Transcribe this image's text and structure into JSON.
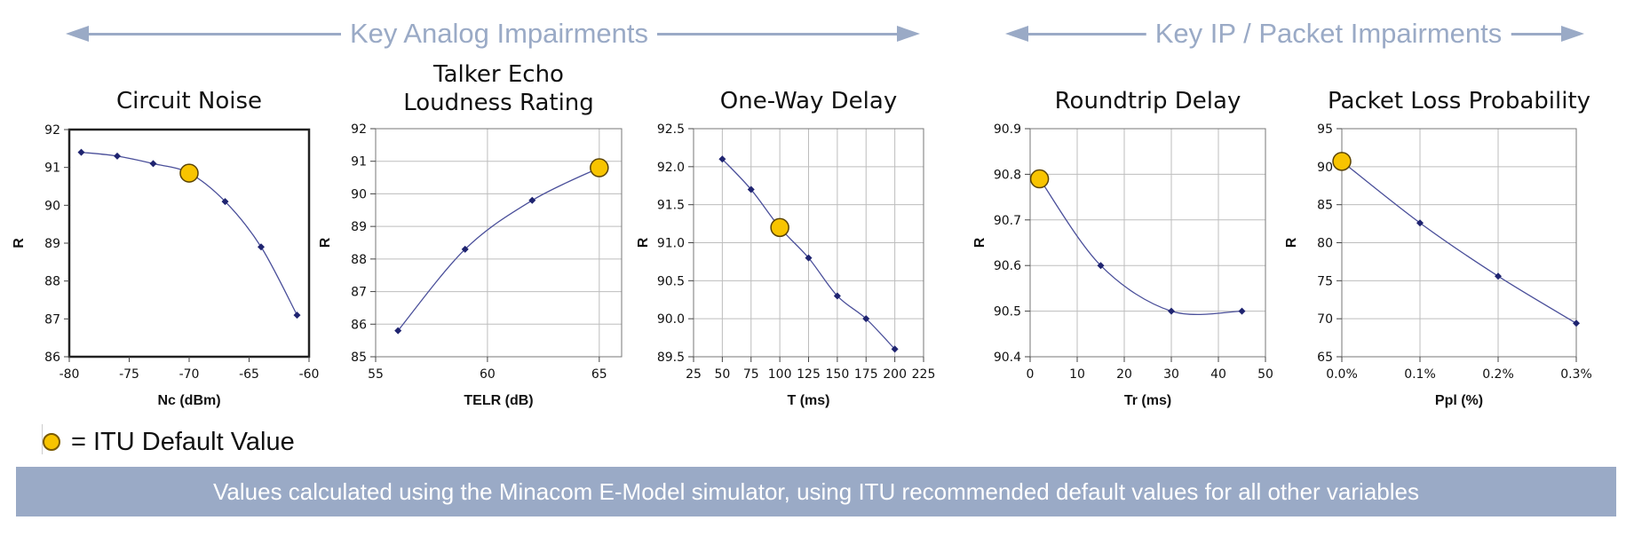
{
  "headers": {
    "analog": "Key Analog Impairments",
    "ip": "Key IP / Packet Impairments"
  },
  "legend": {
    "text": "= ITU Default Value",
    "marker_color": "#f8c400"
  },
  "footer": "Values calculated using the Minacom E-Model simulator, using ITU recommended default values for all other variables",
  "colors": {
    "accent": "#9aaac6",
    "series": "#2b2f7a",
    "marker": "#f8c400"
  },
  "chart_data": [
    {
      "type": "line",
      "title": [
        "Circuit Noise"
      ],
      "xlabel": "Nc (dBm)",
      "ylabel": "R",
      "xlim": [
        -80,
        -60
      ],
      "ylim": [
        86,
        92
      ],
      "xticks": [
        -80,
        -75,
        -70,
        -65,
        -60
      ],
      "xtick_labels": [
        "-80",
        "-75",
        "-70",
        "-65",
        "-60"
      ],
      "yticks": [
        86,
        87,
        88,
        89,
        90,
        91,
        92
      ],
      "ytick_labels": [
        "86",
        "87",
        "88",
        "89",
        "90",
        "91",
        "92"
      ],
      "grid": false,
      "x": [
        -79,
        -76,
        -73,
        -70,
        -67,
        -64,
        -61
      ],
      "y": [
        91.4,
        91.3,
        91.1,
        90.85,
        90.1,
        88.9,
        87.1
      ],
      "default": {
        "x": -70,
        "y": 90.85
      }
    },
    {
      "type": "line",
      "title": [
        "Talker Echo",
        "Loudness Rating"
      ],
      "xlabel": "TELR (dB)",
      "ylabel": "R",
      "xlim": [
        55,
        66
      ],
      "ylim": [
        85,
        92
      ],
      "xticks": [
        55,
        60,
        65
      ],
      "xtick_labels": [
        "55",
        "60",
        "65"
      ],
      "yticks": [
        85,
        86,
        87,
        88,
        89,
        90,
        91,
        92
      ],
      "ytick_labels": [
        "85",
        "86",
        "87",
        "88",
        "89",
        "90",
        "91",
        "92"
      ],
      "grid": true,
      "x": [
        56,
        59,
        62,
        65
      ],
      "y": [
        85.8,
        88.3,
        89.8,
        90.8
      ],
      "default": {
        "x": 65,
        "y": 90.8
      }
    },
    {
      "type": "line",
      "title": [
        "One-Way Delay"
      ],
      "xlabel": "T (ms)",
      "ylabel": "R",
      "xlim": [
        25,
        225
      ],
      "ylim": [
        89.5,
        92.5
      ],
      "xticks": [
        25,
        50,
        75,
        100,
        125,
        150,
        175,
        200,
        225
      ],
      "xtick_labels": [
        "25",
        "50",
        "75",
        "100",
        "125",
        "150",
        "175",
        "200",
        "225"
      ],
      "yticks": [
        89.5,
        90.0,
        90.5,
        91.0,
        91.5,
        92.0,
        92.5
      ],
      "ytick_labels": [
        "89.5",
        "90.0",
        "90.5",
        "91.0",
        "91.5",
        "92.0",
        "92.5"
      ],
      "grid": true,
      "x": [
        50,
        75,
        100,
        125,
        150,
        175,
        200
      ],
      "y": [
        92.1,
        91.7,
        91.2,
        90.8,
        90.3,
        90.0,
        89.6
      ],
      "default": {
        "x": 100,
        "y": 91.2
      }
    },
    {
      "type": "line",
      "title": [
        "Roundtrip Delay"
      ],
      "xlabel": "Tr (ms)",
      "ylabel": "R",
      "xlim": [
        0,
        50
      ],
      "ylim": [
        90.4,
        90.9
      ],
      "xticks": [
        0,
        10,
        20,
        30,
        40,
        50
      ],
      "xtick_labels": [
        "0",
        "10",
        "20",
        "30",
        "40",
        "50"
      ],
      "yticks": [
        90.4,
        90.5,
        90.6,
        90.7,
        90.8,
        90.9
      ],
      "ytick_labels": [
        "90.4",
        "90.5",
        "90.6",
        "90.7",
        "90.8",
        "90.9"
      ],
      "grid": true,
      "x": [
        2,
        15,
        30,
        45
      ],
      "y": [
        90.79,
        90.6,
        90.5,
        90.5
      ],
      "default": {
        "x": 2,
        "y": 90.79
      }
    },
    {
      "type": "line",
      "title": [
        "Packet Loss Probability"
      ],
      "xlabel": "Ppl (%)",
      "ylabel": "R",
      "xlim": [
        0,
        0.3
      ],
      "ylim": [
        65,
        95
      ],
      "xticks": [
        0,
        0.1,
        0.2,
        0.3
      ],
      "xtick_labels": [
        "0.0%",
        "0.1%",
        "0.2%",
        "0.3%"
      ],
      "yticks": [
        65,
        70,
        75,
        80,
        85,
        90,
        95
      ],
      "ytick_labels": [
        "65",
        "70",
        "75",
        "80",
        "85",
        "90",
        "95"
      ],
      "grid": true,
      "x": [
        0,
        0.1,
        0.2,
        0.3
      ],
      "y": [
        90.7,
        82.6,
        75.6,
        69.4
      ],
      "default": {
        "x": 0,
        "y": 90.7
      }
    }
  ]
}
